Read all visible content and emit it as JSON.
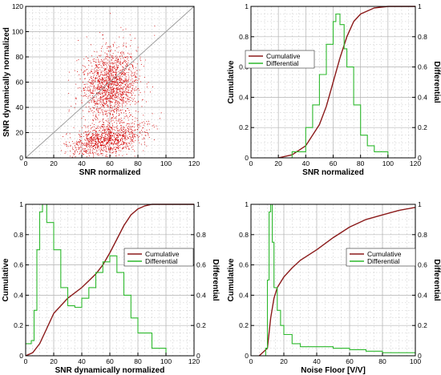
{
  "colors": {
    "cumulative": "#8b1a1a",
    "differential": "#2db82d",
    "scatter": "#d40000",
    "grid": "#b4b4b4",
    "diagonal": "#9a9a9a"
  },
  "chart_data": [
    {
      "type": "scatter",
      "xlabel": "SNR normalized",
      "ylabel": "SNR dynamically normalized",
      "xlim": [
        0,
        120
      ],
      "ylim": [
        0,
        120
      ],
      "xticks": [
        0,
        20,
        40,
        60,
        80,
        100,
        120
      ],
      "yticks": [
        0,
        20,
        40,
        60,
        80,
        100,
        120
      ],
      "grid": true,
      "reference_line": [
        [
          0,
          0
        ],
        [
          120,
          120
        ]
      ],
      "clusters": [
        {
          "x_center": 60,
          "y_center": 58,
          "x_spread": 10,
          "y_spread": 15,
          "share": 0.6
        },
        {
          "x_center": 58,
          "y_center": 15,
          "x_spread": 13,
          "y_spread": 6,
          "share": 0.4
        }
      ]
    },
    {
      "type": "line",
      "xlabel": "SNR normalized",
      "ylabel_left": "Cumulative",
      "ylabel_right": "Differential",
      "xlim": [
        0,
        120
      ],
      "ylim": [
        0,
        1
      ],
      "xticks": [
        0,
        20,
        40,
        60,
        80,
        100,
        120
      ],
      "yticks": [
        0,
        0.2,
        0.4,
        0.6,
        0.8,
        1
      ],
      "grid": true,
      "legend": "center-left",
      "series": [
        {
          "name": "Cumulative",
          "x": [
            20,
            30,
            40,
            50,
            55,
            60,
            65,
            70,
            75,
            80,
            90,
            100,
            110,
            120
          ],
          "y": [
            0,
            0.02,
            0.08,
            0.22,
            0.34,
            0.5,
            0.66,
            0.8,
            0.9,
            0.95,
            0.99,
            1,
            1,
            1
          ]
        },
        {
          "name": "Differential",
          "x": [
            18,
            30,
            40,
            45,
            50,
            55,
            60,
            62,
            65,
            68,
            70,
            75,
            80,
            85,
            90,
            100
          ],
          "y": [
            0,
            0.04,
            0.2,
            0.35,
            0.55,
            0.75,
            0.9,
            0.95,
            0.88,
            0.72,
            0.6,
            0.35,
            0.15,
            0.08,
            0.04,
            0
          ]
        }
      ]
    },
    {
      "type": "line",
      "xlabel": "SNR dynamically normalized",
      "ylabel_left": "Cumulative",
      "ylabel_right": "Differential",
      "xlim": [
        0,
        120
      ],
      "ylim": [
        0,
        1
      ],
      "xticks": [
        0,
        20,
        40,
        60,
        80,
        100,
        120
      ],
      "yticks": [
        0,
        0.2,
        0.4,
        0.6,
        0.8,
        1
      ],
      "grid": true,
      "legend": "center-right",
      "series": [
        {
          "name": "Cumulative",
          "x": [
            0,
            5,
            10,
            15,
            20,
            30,
            40,
            50,
            55,
            60,
            65,
            70,
            75,
            80,
            85,
            90,
            100,
            110,
            120
          ],
          "y": [
            0,
            0.02,
            0.08,
            0.18,
            0.28,
            0.38,
            0.45,
            0.54,
            0.6,
            0.68,
            0.77,
            0.86,
            0.93,
            0.97,
            0.99,
            1,
            1,
            1,
            1
          ]
        },
        {
          "name": "Differential",
          "x": [
            0,
            4,
            6,
            8,
            10,
            12,
            15,
            20,
            25,
            30,
            35,
            40,
            45,
            50,
            55,
            60,
            65,
            70,
            75,
            80,
            90,
            100
          ],
          "y": [
            0.08,
            0.1,
            0.3,
            0.7,
            0.95,
            1,
            0.88,
            0.7,
            0.45,
            0.33,
            0.32,
            0.38,
            0.45,
            0.55,
            0.62,
            0.66,
            0.55,
            0.4,
            0.25,
            0.15,
            0.05,
            0
          ]
        }
      ]
    },
    {
      "type": "line",
      "xlabel": "Noise Floor [V/V]",
      "ylabel_left": "Cumulative",
      "ylabel_right": "Differential",
      "xlim": [
        0,
        100
      ],
      "ylim": [
        0,
        1
      ],
      "xticks": [
        0,
        20,
        40,
        60,
        80,
        100
      ],
      "yticks": [
        0,
        0.2,
        0.4,
        0.6,
        0.8,
        1
      ],
      "grid": true,
      "legend": "center-right",
      "series": [
        {
          "name": "Cumulative",
          "x": [
            5,
            10,
            12,
            14,
            16,
            20,
            25,
            30,
            40,
            50,
            60,
            70,
            80,
            90,
            100
          ],
          "y": [
            0,
            0.05,
            0.25,
            0.38,
            0.45,
            0.52,
            0.58,
            0.63,
            0.7,
            0.78,
            0.85,
            0.9,
            0.93,
            0.96,
            0.98
          ]
        },
        {
          "name": "Differential",
          "x": [
            5,
            9,
            10,
            11,
            12,
            13,
            14,
            16,
            18,
            20,
            25,
            30,
            40,
            50,
            60,
            70,
            80,
            90,
            100
          ],
          "y": [
            0,
            0.05,
            0.5,
            0.95,
            1,
            0.75,
            0.45,
            0.3,
            0.2,
            0.14,
            0.08,
            0.06,
            0.06,
            0.05,
            0.04,
            0.03,
            0.02,
            0.02,
            0.01
          ]
        }
      ]
    }
  ]
}
